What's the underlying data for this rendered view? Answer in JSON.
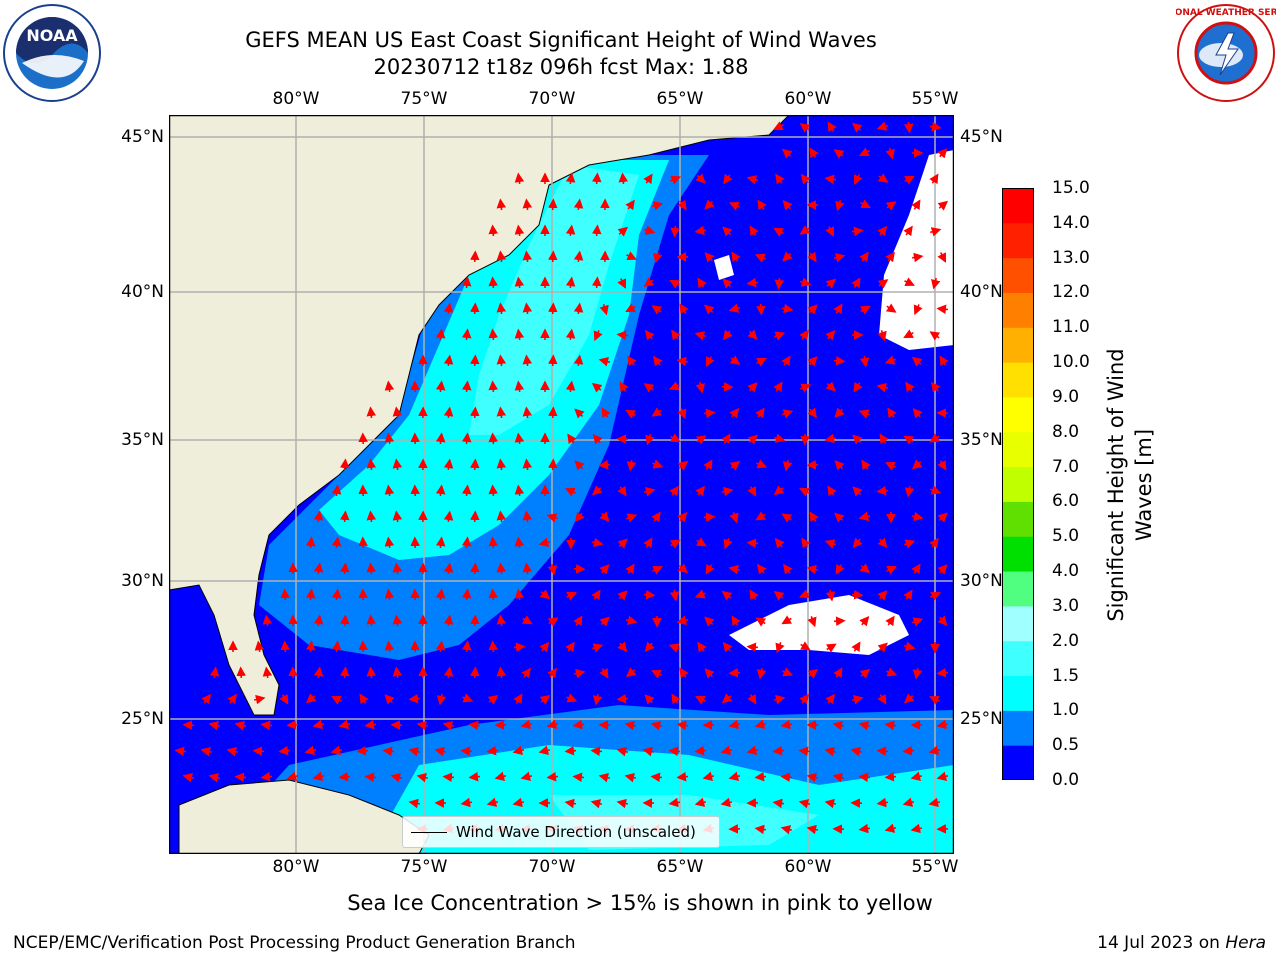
{
  "title": {
    "line1": "GEFS MEAN US East Coast Significant Height of Wind Waves",
    "line2": "20230712 t18z 096h fcst   Max: 1.88"
  },
  "logos": {
    "left": "noaa-logo",
    "right": "national-weather-service-logo",
    "left_text": "NOAA",
    "right_text": "NATIONAL WEATHER SERVICE"
  },
  "lon_labels": [
    "80°W",
    "75°W",
    "70°W",
    "65°W",
    "60°W",
    "55°W"
  ],
  "lat_labels": [
    "45°N",
    "40°N",
    "35°N",
    "30°N",
    "25°N"
  ],
  "colorbar": {
    "label": "Significant Height of Wind Waves [m]",
    "label_line1": "Significant Height of Wind",
    "label_line2": "Waves [m]",
    "ticks": [
      "0.0",
      "0.5",
      "1.0",
      "1.5",
      "2.0",
      "3.0",
      "4.0",
      "5.0",
      "6.0",
      "7.0",
      "8.0",
      "9.0",
      "10.0",
      "11.0",
      "12.0",
      "13.0",
      "14.0",
      "15.0"
    ],
    "colors": [
      "#0000ff",
      "#0080ff",
      "#00ffff",
      "#40ffff",
      "#a0ffff",
      "#50ff80",
      "#00e000",
      "#60e000",
      "#c0ff00",
      "#e8ff00",
      "#ffff00",
      "#ffe000",
      "#ffb000",
      "#ff8000",
      "#ff5000",
      "#ff2000",
      "#ff0000"
    ]
  },
  "legend": {
    "label": "Wind Wave Direction (unscaled)"
  },
  "note": "Sea Ice Concentration > 15% is shown in pink to yellow",
  "footer": {
    "left": "NCEP/EMC/Verification Post Processing Product Generation Branch",
    "right_date": "14 Jul 2023 on ",
    "right_host": "Hera"
  },
  "map_colors": {
    "land": "#efeedb",
    "ocean_low": "#0000ff",
    "arrows": "#ff0000",
    "grid": "#b0b0b0"
  }
}
